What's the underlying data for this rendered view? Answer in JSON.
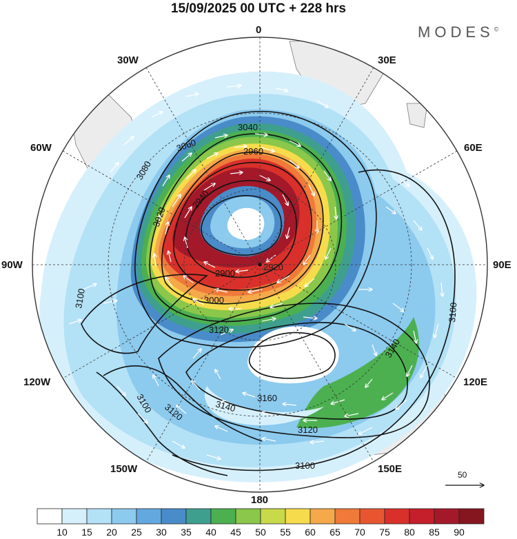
{
  "title": "15/09/2025  00 UTC  + 228 hrs",
  "brand": {
    "name": "MODES",
    "mark": "©"
  },
  "longitude_labels": {
    "lon_0": "0",
    "lon_30e": "30E",
    "lon_60e": "60E",
    "lon_90e": "90E",
    "lon_120e": "120E",
    "lon_150e": "150E",
    "lon_180": "180",
    "lon_150w": "150W",
    "lon_120w": "120W",
    "lon_90w": "90W",
    "lon_60w": "60W",
    "lon_30w": "30W"
  },
  "contour_labels": [
    "2900",
    "2920",
    "2940",
    "2960",
    "3000",
    "3020",
    "3040",
    "3060",
    "3080",
    "3100",
    "3120",
    "3140",
    "3160"
  ],
  "reference_vector": {
    "value": "50"
  },
  "colorbar": {
    "labels": [
      "10",
      "15",
      "20",
      "25",
      "30",
      "35",
      "40",
      "45",
      "50",
      "55",
      "60",
      "65",
      "70",
      "75",
      "80",
      "85",
      "90"
    ],
    "colors": [
      "#ffffff",
      "#d6f0fb",
      "#b3e1f6",
      "#8ccaee",
      "#63a9df",
      "#4a8bc9",
      "#3f9f8f",
      "#4cb050",
      "#8ac74a",
      "#c8d94a",
      "#f6dc4c",
      "#f4a94a",
      "#ef7a3a",
      "#e85630",
      "#d9302b",
      "#c41f2a",
      "#a3192a",
      "#85151f"
    ]
  },
  "palette": {
    "land": "#ececec",
    "coast": "#7a7a7a",
    "contour": "#111111",
    "grid": "#333333",
    "vector": "#ffffff"
  }
}
